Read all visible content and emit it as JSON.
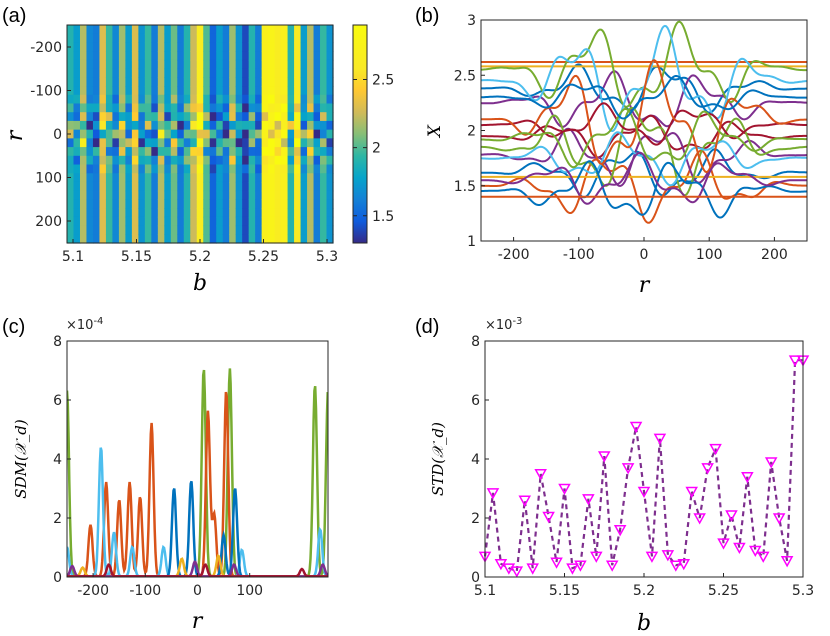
{
  "chart_data": [
    {
      "id": "a",
      "panel_label": "(a)",
      "type": "heatmap",
      "xlabel": "b",
      "ylabel": "r",
      "xlim": [
        5.1,
        5.3
      ],
      "ylim": [
        -250,
        250
      ],
      "y_reversed": true,
      "x_ticks": [
        "5.1",
        "5.15",
        "5.2",
        "5.25",
        "5.3"
      ],
      "y_ticks": [
        "-200",
        "-100",
        "0",
        "100",
        "200"
      ],
      "colorbar": {
        "range": [
          1.3,
          2.9
        ],
        "ticks": [
          "1.5",
          "2",
          "2.5"
        ],
        "colormap": "parula"
      },
      "columns_b": [
        5.1,
        5.105,
        5.11,
        5.115,
        5.12,
        5.125,
        5.13,
        5.135,
        5.14,
        5.145,
        5.15,
        5.155,
        5.16,
        5.165,
        5.17,
        5.175,
        5.18,
        5.185,
        5.19,
        5.195,
        5.2,
        5.205,
        5.21,
        5.215,
        5.22,
        5.225,
        5.23,
        5.235,
        5.24,
        5.245,
        5.25,
        5.255,
        5.26,
        5.265,
        5.27,
        5.275,
        5.28,
        5.285,
        5.29,
        5.295,
        5.3
      ],
      "column_base": [
        1.9,
        1.75,
        2.2,
        1.65,
        1.6,
        2.3,
        1.95,
        1.65,
        2.15,
        1.75,
        2.3,
        1.7,
        1.95,
        1.6,
        2.2,
        1.75,
        2.05,
        1.6,
        1.9,
        2.25,
        2.65,
        2.0,
        1.5,
        1.75,
        1.6,
        2.15,
        1.7,
        1.4,
        1.9,
        1.6,
        2.7,
        2.75,
        2.65,
        2.7,
        1.9,
        2.6,
        1.75,
        2.2,
        1.6,
        1.95,
        1.7
      ],
      "note": "values ~1.3-2.9; central band |r|<80 shows local variation"
    },
    {
      "id": "b",
      "panel_label": "(b)",
      "type": "line",
      "xlabel": "r",
      "ylabel": "X",
      "xlim": [
        -250,
        250
      ],
      "ylim": [
        1,
        3
      ],
      "x_ticks": [
        "-200",
        "-100",
        "0",
        "100",
        "200"
      ],
      "y_ticks": [
        "1",
        "1.5",
        "2",
        "2.5",
        "3"
      ],
      "series": [
        {
          "color": "#0072BD",
          "level": 2.38,
          "amp": 0.25
        },
        {
          "color": "#D95319",
          "level": 2.62,
          "amp": 0.0
        },
        {
          "color": "#EDB120",
          "level": 2.58,
          "amp": 0.0
        },
        {
          "color": "#7E2F8E",
          "level": 2.25,
          "amp": 0.3
        },
        {
          "color": "#77AC30",
          "level": 2.55,
          "amp": 0.45
        },
        {
          "color": "#4DBEEE",
          "level": 2.45,
          "amp": 0.5
        },
        {
          "color": "#A2142F",
          "level": 1.95,
          "amp": 0.2
        },
        {
          "color": "#0072BD",
          "level": 1.62,
          "amp": 0.25
        },
        {
          "color": "#D95319",
          "level": 1.5,
          "amp": 0.35
        },
        {
          "color": "#EDB120",
          "level": 1.58,
          "amp": 0.0
        },
        {
          "color": "#7E2F8E",
          "level": 1.78,
          "amp": 0.3
        },
        {
          "color": "#77AC30",
          "level": 1.85,
          "amp": 0.45
        },
        {
          "color": "#4DBEEE",
          "level": 1.75,
          "amp": 0.25
        },
        {
          "color": "#A2142F",
          "level": 2.05,
          "amp": 0.2
        },
        {
          "color": "#0072BD",
          "level": 1.45,
          "amp": 0.3
        },
        {
          "color": "#D95319",
          "level": 2.1,
          "amp": 0.55
        },
        {
          "color": "#7E2F8E",
          "level": 1.55,
          "amp": 0.25
        },
        {
          "color": "#77AC30",
          "level": 1.92,
          "amp": 0.3
        },
        {
          "color": "#D95319",
          "level": 1.4,
          "amp": 0.0
        },
        {
          "color": "#0072BD",
          "level": 2.3,
          "amp": 0.2
        }
      ]
    },
    {
      "id": "c",
      "panel_label": "(c)",
      "type": "line",
      "xlabel": "r",
      "ylabel": "SDM(𝒳_d)",
      "exponent": "×10",
      "exponent_power": "-4",
      "xlim": [
        -250,
        250
      ],
      "ylim": [
        0,
        8
      ],
      "x_ticks": [
        "-200",
        "-100",
        "0",
        "100"
      ],
      "y_ticks": [
        "0",
        "2",
        "4",
        "6",
        "8"
      ],
      "series": [
        {
          "color": "#77AC30",
          "peaks": [
            [
              -250,
              6.3
            ],
            [
              12,
              7.05
            ],
            [
              62,
              7.05
            ],
            [
              225,
              6.5
            ],
            [
              250,
              6.3
            ]
          ]
        },
        {
          "color": "#D95319",
          "peaks": [
            [
              -205,
              1.75
            ],
            [
              -175,
              3.2
            ],
            [
              -150,
              2.6
            ],
            [
              -130,
              3.2
            ],
            [
              -110,
              2.7
            ],
            [
              -88,
              5.2
            ],
            [
              20,
              5.6
            ],
            [
              55,
              6.3
            ],
            [
              32,
              2.1
            ]
          ]
        },
        {
          "color": "#4DBEEE",
          "peaks": [
            [
              -185,
              4.4
            ],
            [
              -160,
              1.5
            ],
            [
              -125,
              1.0
            ],
            [
              -65,
              1.0
            ],
            [
              85,
              0.9
            ],
            [
              235,
              1.6
            ],
            [
              -250,
              1.0
            ]
          ]
        },
        {
          "color": "#0072BD",
          "peaks": [
            [
              -45,
              3.0
            ],
            [
              -12,
              3.25
            ],
            [
              72,
              3.0
            ],
            [
              50,
              1.4
            ]
          ]
        },
        {
          "color": "#EDB120",
          "peaks": [
            [
              -30,
              0.6
            ],
            [
              40,
              0.7
            ],
            [
              -220,
              0.3
            ]
          ]
        },
        {
          "color": "#7E2F8E",
          "peaks": [
            [
              -240,
              0.35
            ],
            [
              -5,
              0.5
            ],
            [
              240,
              0.4
            ],
            [
              70,
              0.4
            ]
          ]
        },
        {
          "color": "#A2142F",
          "peaks": [
            [
              -170,
              0.4
            ],
            [
              15,
              0.4
            ],
            [
              200,
              0.25
            ]
          ]
        }
      ]
    },
    {
      "id": "d",
      "panel_label": "(d)",
      "type": "line",
      "xlabel": "b",
      "ylabel": "STD(𝒳_d)",
      "exponent": "×10",
      "exponent_power": "-3",
      "xlim": [
        5.1,
        5.3
      ],
      "ylim": [
        0,
        8
      ],
      "x_ticks": [
        "5.1",
        "5.15",
        "5.2",
        "5.25",
        "5.3"
      ],
      "y_ticks": [
        "0",
        "2",
        "4",
        "6",
        "8"
      ],
      "series": [
        {
          "color": "#7E2F8E",
          "marker_color": "#FF00FF",
          "marker": "triangle-down",
          "x": [
            5.1,
            5.105,
            5.11,
            5.115,
            5.12,
            5.125,
            5.13,
            5.135,
            5.14,
            5.145,
            5.15,
            5.155,
            5.16,
            5.165,
            5.17,
            5.175,
            5.18,
            5.185,
            5.19,
            5.195,
            5.2,
            5.205,
            5.21,
            5.215,
            5.22,
            5.225,
            5.23,
            5.235,
            5.24,
            5.245,
            5.25,
            5.255,
            5.26,
            5.265,
            5.27,
            5.275,
            5.28,
            5.285,
            5.29,
            5.295,
            5.3
          ],
          "y": [
            0.7,
            2.85,
            0.45,
            0.3,
            0.2,
            2.6,
            0.3,
            3.5,
            2.05,
            0.5,
            3.0,
            0.3,
            0.4,
            2.65,
            0.7,
            4.1,
            0.4,
            1.6,
            3.7,
            5.1,
            2.9,
            0.7,
            4.7,
            0.75,
            0.4,
            0.45,
            2.9,
            2.0,
            3.7,
            4.35,
            1.15,
            2.1,
            1.0,
            3.4,
            0.9,
            0.7,
            3.9,
            2.0,
            0.55,
            7.35,
            7.35
          ]
        }
      ]
    }
  ]
}
